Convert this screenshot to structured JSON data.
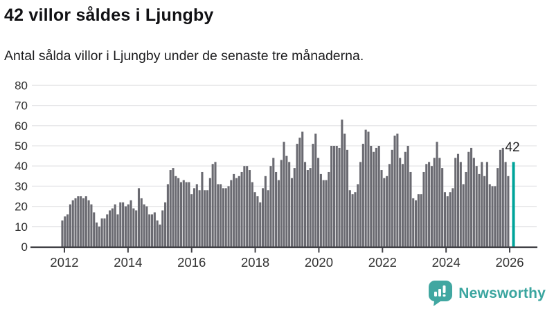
{
  "header": {
    "title": "42 villor såldes i Ljungby",
    "subtitle": "Antal sålda villor i Ljungby under de senaste tre månaderna."
  },
  "footer": {
    "brand": "Newsworthy"
  },
  "colors": {
    "bar": "#6a6a71",
    "highlight": "#00a49a",
    "grid": "#e5e5e7",
    "axis": "#414146",
    "tick_label": "#333333",
    "annotation": "#1d1d1f",
    "logo": "#41a7a1"
  },
  "chart_data": {
    "type": "bar",
    "title": "42 villor såldes i Ljungby",
    "subtitle": "Antal sålda villor i Ljungby under de senaste tre månaderna.",
    "xlabel": "",
    "ylabel": "",
    "x_start": "2012-01",
    "x_frequency": "monthly",
    "ylim": [
      0,
      80
    ],
    "y_ticks": [
      0,
      10,
      20,
      30,
      40,
      50,
      60,
      70,
      80
    ],
    "x_ticks": [
      2012,
      2014,
      2016,
      2018,
      2020,
      2022,
      2024,
      2026
    ],
    "grid": "horizontal",
    "legend": "none",
    "highlight_last": true,
    "last_value_label": "42",
    "values": [
      13,
      15,
      16,
      21,
      23,
      24,
      25,
      25,
      24,
      25,
      23,
      21,
      17,
      12,
      10,
      14,
      14,
      16,
      18,
      19,
      21,
      16,
      22,
      22,
      20,
      21,
      23,
      19,
      18,
      29,
      24,
      21,
      20,
      16,
      16,
      17,
      13,
      11,
      18,
      22,
      31,
      38,
      39,
      35,
      34,
      32,
      33,
      32,
      32,
      26,
      29,
      31,
      28,
      37,
      28,
      28,
      34,
      41,
      42,
      31,
      31,
      29,
      29,
      30,
      33,
      36,
      34,
      35,
      37,
      40,
      40,
      38,
      32,
      27,
      25,
      22,
      29,
      35,
      28,
      40,
      44,
      37,
      33,
      43,
      52,
      45,
      42,
      34,
      39,
      51,
      54,
      57,
      42,
      38,
      39,
      51,
      56,
      44,
      36,
      33,
      33,
      37,
      50,
      50,
      50,
      49,
      63,
      56,
      48,
      28,
      26,
      27,
      31,
      42,
      51,
      58,
      57,
      50,
      47,
      49,
      50,
      38,
      34,
      35,
      41,
      48,
      55,
      56,
      44,
      41,
      47,
      50,
      37,
      24,
      23,
      26,
      26,
      37,
      41,
      42,
      40,
      44,
      52,
      44,
      39,
      27,
      25,
      27,
      29,
      44,
      46,
      42,
      31,
      37,
      47,
      49,
      44,
      40,
      36,
      42,
      35,
      42,
      31,
      30,
      30,
      39,
      48,
      49,
      42,
      35,
      null,
      42
    ]
  }
}
